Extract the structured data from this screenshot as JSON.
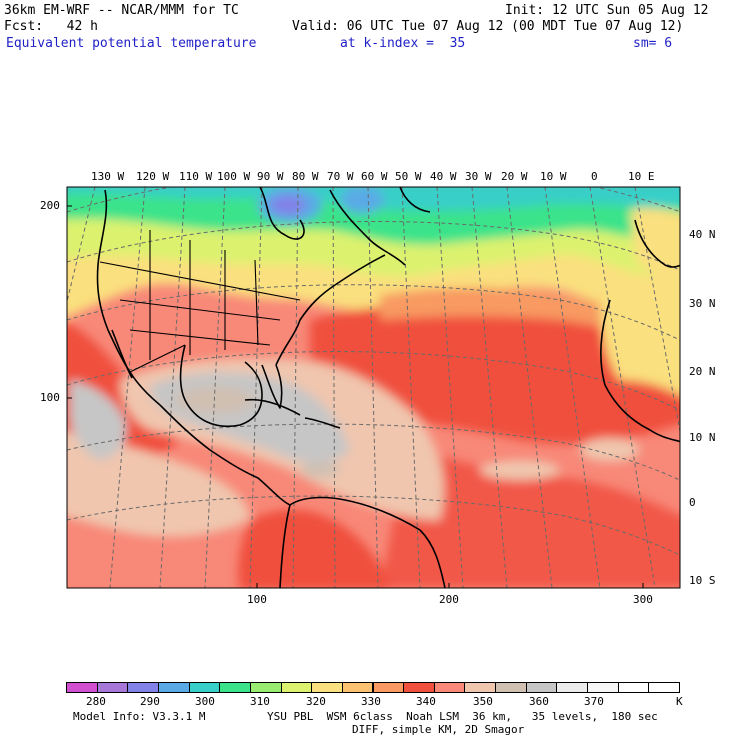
{
  "header": {
    "line1_left": "36km EM-WRF -- NCAR/MMM for TC",
    "line1_right": "Init: 12 UTC Sun 05 Aug 12",
    "line2_left": "Fcst:   42 h",
    "line2_right": "Valid: 06 UTC Tue 07 Aug 12 (00 MDT Tue 07 Aug 12)",
    "line3_field": "Equivalent potential temperature",
    "line3_level": "at k-index =  35",
    "line3_sm": "sm= 6"
  },
  "map": {
    "top_longitudes": [
      "130 W",
      "120 W",
      "110 W",
      "100 W",
      "90 W",
      "80 W",
      "70 W",
      "60 W",
      "50 W",
      "40 W",
      "30 W",
      "20 W",
      "10 W",
      "0",
      "10 E"
    ],
    "right_latitudes": [
      "40 N",
      "30 N",
      "20 N",
      "10 N",
      "0",
      "10 S"
    ],
    "left_grid_ticks": [
      "200",
      "100"
    ],
    "bottom_grid_ticks": [
      "100",
      "200",
      "300"
    ],
    "colors": {
      "land_line": "#000000",
      "grid_line": "#6a6a6a"
    }
  },
  "legend": {
    "colors": [
      "#d050d0",
      "#a878d8",
      "#8282e8",
      "#5aaae6",
      "#38cfc8",
      "#3ae38a",
      "#98ec70",
      "#dcf26e",
      "#fae07e",
      "#fcc272",
      "#f89a62",
      "#f0503e",
      "#f88878",
      "#f0c6ae",
      "#d0c0b2",
      "#c6c6c6",
      "#ececec",
      "#f6f6f6",
      "#ffffff",
      "#ffffff"
    ],
    "labels": [
      "280",
      "290",
      "300",
      "310",
      "320",
      "330",
      "340",
      "350",
      "360",
      "370"
    ],
    "unit": "K"
  },
  "footer": {
    "line1_left": "Model Info: V3.3.1 M",
    "line1_right": "YSU PBL  WSM 6class  Noah LSM  36 km,   35 levels,  180 sec",
    "line2": "DIFF, simple KM, 2D Smagor"
  }
}
